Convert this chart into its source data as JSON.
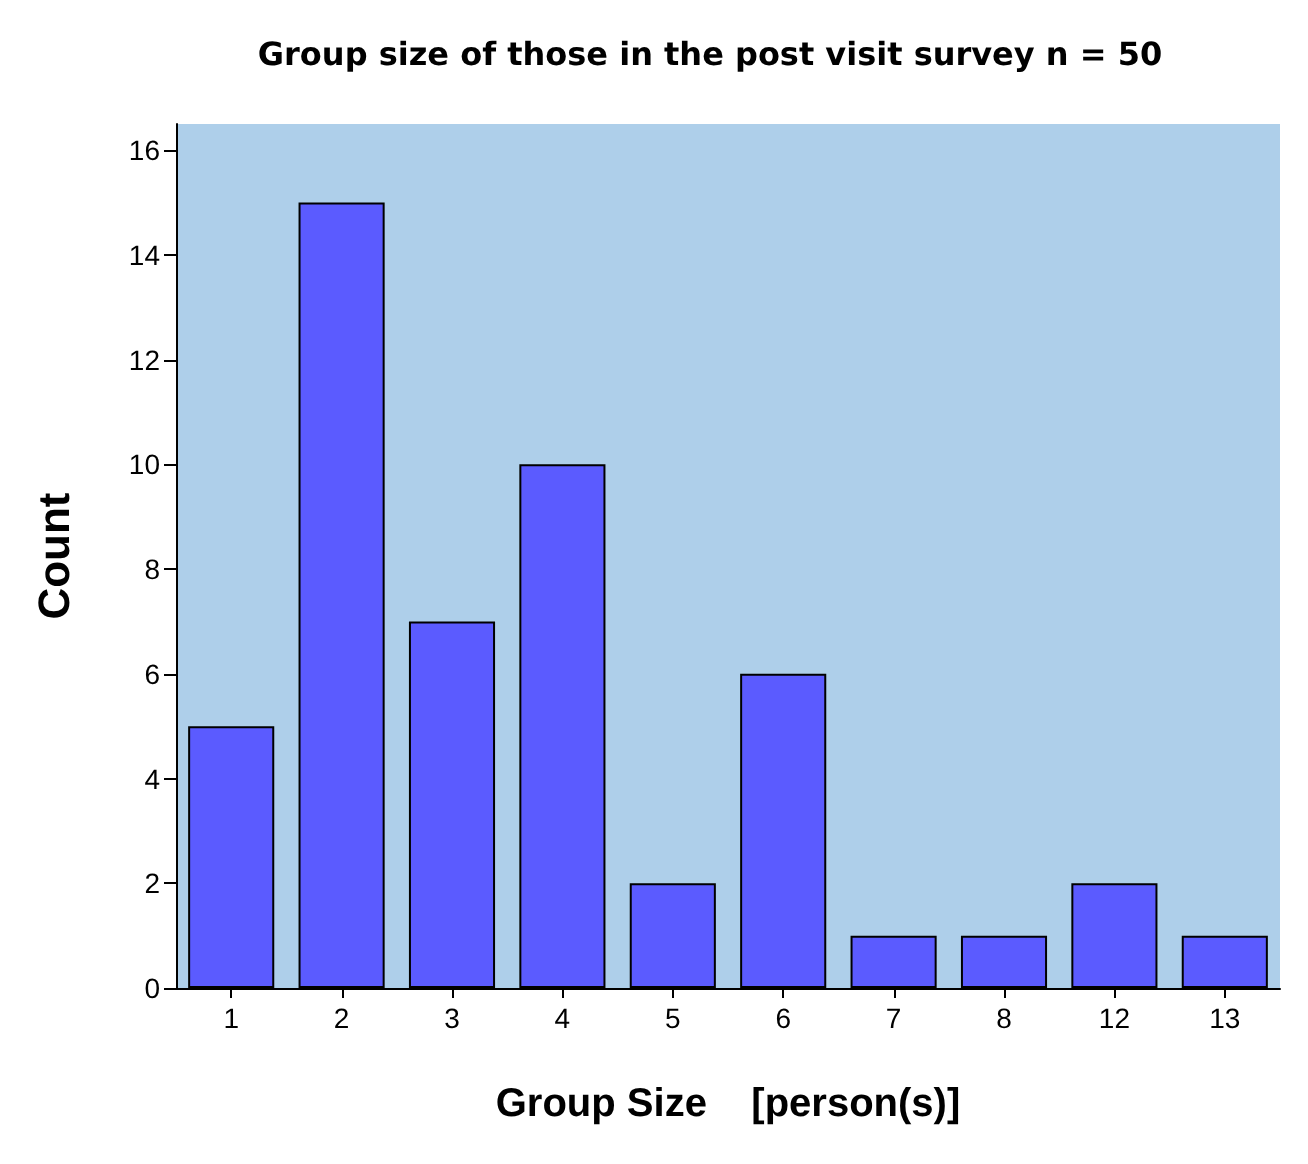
{
  "chart_data": {
    "type": "bar",
    "title": "Group size of those in the post visit survey n = 50",
    "xlabel": "Group Size    [person(s)]",
    "ylabel": "Count",
    "categories": [
      "1",
      "2",
      "3",
      "4",
      "5",
      "6",
      "7",
      "8",
      "12",
      "13"
    ],
    "values": [
      5,
      15,
      7,
      10,
      2,
      6,
      1,
      1,
      2,
      1
    ],
    "color": "#5b5bff",
    "ylim": [
      0,
      16.5
    ],
    "yticks": [
      0,
      2,
      4,
      6,
      8,
      10,
      12,
      14,
      16
    ],
    "grid": false
  }
}
